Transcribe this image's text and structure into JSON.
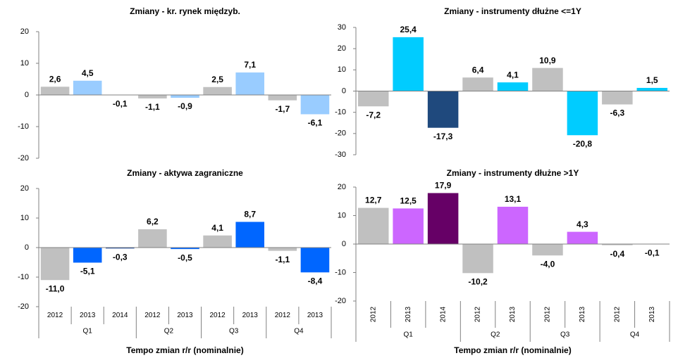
{
  "chart_data": [
    {
      "type": "bar",
      "title": "Zmiany - kr. rynek międzyb.",
      "values": [
        2.6,
        4.5,
        -0.1,
        -1.1,
        -0.9,
        2.5,
        7.1,
        -1.7,
        -6.1
      ],
      "value_labels": [
        "2,6",
        "4,5",
        "-0,1",
        "-1,1",
        "-0,9",
        "2,5",
        "7,1",
        "-1,7",
        "-6,1"
      ],
      "colors": [
        "#c0c0c0",
        "#99ccff",
        "#1f497d",
        "#c0c0c0",
        "#99ccff",
        "#c0c0c0",
        "#99ccff",
        "#c0c0c0",
        "#99ccff"
      ],
      "ylim": [
        -20,
        20
      ],
      "yticks": [
        -20,
        -10,
        0,
        10,
        20
      ]
    },
    {
      "type": "bar",
      "title": "Zmiany - instrumenty dłużne <=1Y",
      "values": [
        -7.2,
        25.4,
        -17.3,
        6.4,
        4.1,
        10.9,
        -20.8,
        -6.3,
        1.5
      ],
      "value_labels": [
        "-7,2",
        "25,4",
        "-17,3",
        "6,4",
        "4,1",
        "10,9",
        "-20,8",
        "-6,3",
        "1,5"
      ],
      "colors": [
        "#c0c0c0",
        "#00ccff",
        "#1f497d",
        "#c0c0c0",
        "#00ccff",
        "#c0c0c0",
        "#00ccff",
        "#c0c0c0",
        "#00ccff"
      ],
      "ylim": [
        -30,
        30
      ],
      "yticks": [
        -30,
        -20,
        -10,
        0,
        10,
        20,
        30
      ]
    },
    {
      "type": "bar",
      "title": "Zmiany - aktywa zagraniczne",
      "category_groups": [
        {
          "label": "Q1",
          "categories": [
            "2012",
            "2013",
            "2014"
          ]
        },
        {
          "label": "Q2",
          "categories": [
            "2012",
            "2013"
          ]
        },
        {
          "label": "Q3",
          "categories": [
            "2012",
            "2013"
          ]
        },
        {
          "label": "Q4",
          "categories": [
            "2012",
            "2013"
          ]
        }
      ],
      "values": [
        -11.0,
        -5.1,
        -0.3,
        6.2,
        -0.5,
        4.1,
        8.7,
        -1.1,
        -8.4
      ],
      "value_labels": [
        "-11,0",
        "-5,1",
        "-0,3",
        "6,2",
        "-0,5",
        "4,1",
        "8,7",
        "-1,1",
        "-8,4"
      ],
      "colors": [
        "#c0c0c0",
        "#0066ff",
        "#003399",
        "#c0c0c0",
        "#0066ff",
        "#c0c0c0",
        "#0066ff",
        "#c0c0c0",
        "#0066ff"
      ],
      "ylim": [
        -20,
        20
      ],
      "yticks": [
        -20,
        -10,
        0,
        10,
        20
      ],
      "x_label": "Tempo zmian r/r (nominalnie)"
    },
    {
      "type": "bar",
      "title": "Zmiany - instrumenty dłużne >1Y",
      "category_groups": [
        {
          "label": "Q1",
          "categories": [
            "2012",
            "2013",
            "2014"
          ]
        },
        {
          "label": "Q2",
          "categories": [
            "2012",
            "2013"
          ]
        },
        {
          "label": "Q3",
          "categories": [
            "2012",
            "2013"
          ]
        },
        {
          "label": "Q4",
          "categories": [
            "2012",
            "2013"
          ]
        }
      ],
      "values": [
        12.7,
        12.5,
        17.9,
        -10.2,
        13.1,
        -4.0,
        4.3,
        -0.4,
        -0.1
      ],
      "value_labels": [
        "12,7",
        "12,5",
        "17,9",
        "-10,2",
        "13,1",
        "-4,0",
        "4,3",
        "-0,4",
        "-0,1"
      ],
      "colors": [
        "#c0c0c0",
        "#cc66ff",
        "#660066",
        "#c0c0c0",
        "#cc66ff",
        "#c0c0c0",
        "#cc66ff",
        "#c0c0c0",
        "#cc66ff"
      ],
      "ylim": [
        -20,
        20
      ],
      "yticks": [
        -20,
        -10,
        0,
        10,
        20
      ],
      "x_label": "Tempo zmian r/r (nominalnie)",
      "rotated_categories": true
    }
  ]
}
